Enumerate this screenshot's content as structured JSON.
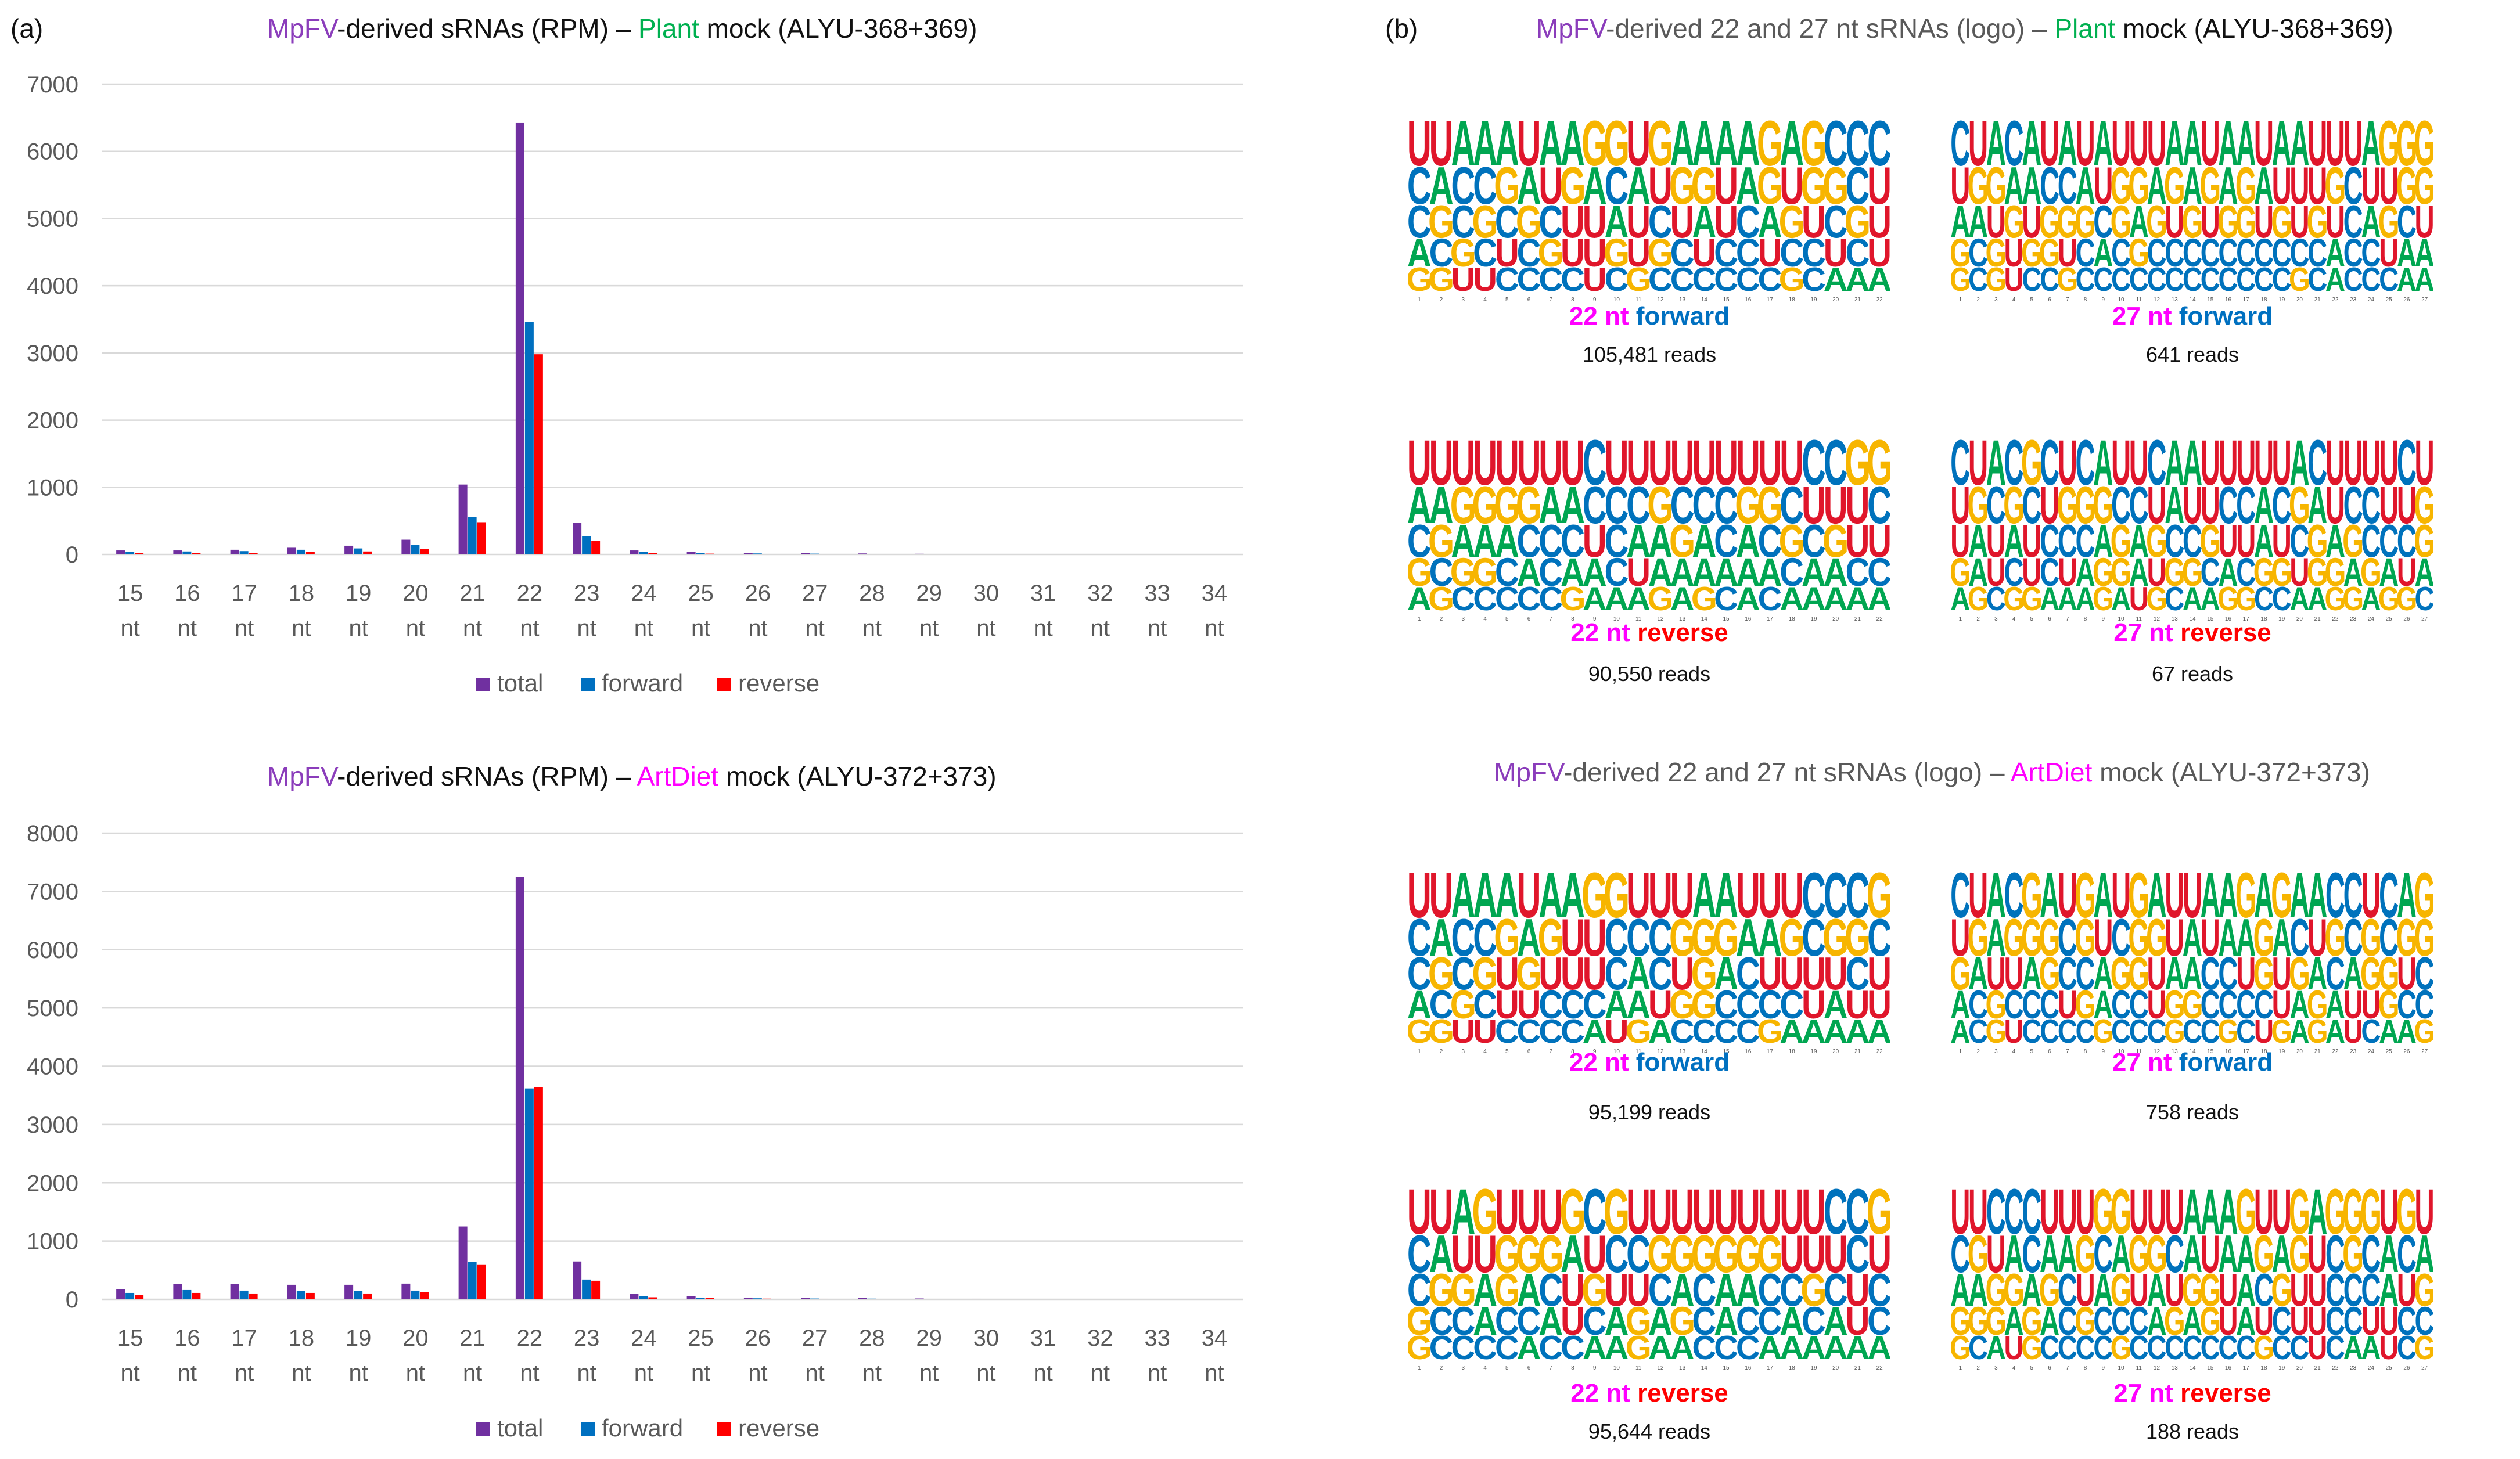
{
  "panel_a_label": "(a)",
  "panel_b_label": "(b)",
  "chart_titles": [
    {
      "part1": "MpFV",
      "part2": "-derived sRNAs (RPM) – ",
      "part3": "Plant",
      "part4": " mock (ALYU-368+369)"
    },
    {
      "part1": "MpFV",
      "part2": "-derived sRNAs (RPM) – ",
      "part3": "ArtDiet",
      "part4": " mock (ALYU-372+373)"
    }
  ],
  "logo_titles": [
    {
      "part1": "MpFV",
      "part2": "-derived 22 and 27 nt sRNAs (logo) – ",
      "part3": "Plant",
      "part4": " mock (ALYU-368+369)"
    },
    {
      "part1": "MpFV",
      "part2": "-derived 22 and 27 nt sRNAs (logo) – ",
      "part3": "ArtDiet",
      "part4": " mock (ALYU-372+373)"
    }
  ],
  "colors": {
    "total": "#7030A0",
    "forward": "#0070C0",
    "reverse": "#FF0000",
    "A": "#00A651",
    "C": "#0072BC",
    "G": "#F7B500",
    "U": "#E0162B",
    "caption_len": "#FF00FF",
    "caption_forward": "#0070C0",
    "caption_reverse": "#FF0000"
  },
  "chart_data": [
    {
      "type": "bar",
      "title": "MpFV-derived sRNAs (RPM) – Plant mock (ALYU-368+369)",
      "categories": [
        "15 nt",
        "16 nt",
        "17 nt",
        "18 nt",
        "19 nt",
        "20 nt",
        "21 nt",
        "22 nt",
        "23 nt",
        "24 nt",
        "25 nt",
        "26 nt",
        "27 nt",
        "28 nt",
        "29 nt",
        "30 nt",
        "31 nt",
        "32 nt",
        "33 nt",
        "34 nt"
      ],
      "yticks": [
        "0",
        "1000",
        "2000",
        "3000",
        "4000",
        "5000",
        "6000",
        "7000"
      ],
      "ylim": [
        0,
        7000
      ],
      "legend": [
        "total",
        "forward",
        "reverse"
      ],
      "legend_position": "bottom",
      "series": [
        {
          "name": "total",
          "values": [
            60,
            60,
            70,
            100,
            130,
            220,
            1040,
            6430,
            470,
            60,
            40,
            25,
            20,
            15,
            10,
            8,
            5,
            4,
            3,
            2
          ]
        },
        {
          "name": "forward",
          "values": [
            40,
            45,
            50,
            70,
            90,
            140,
            560,
            3460,
            270,
            40,
            25,
            15,
            12,
            8,
            6,
            4,
            3,
            2,
            2,
            1
          ]
        },
        {
          "name": "reverse",
          "values": [
            20,
            20,
            25,
            35,
            45,
            85,
            480,
            2980,
            200,
            20,
            12,
            8,
            6,
            5,
            3,
            2,
            1,
            1,
            1,
            1
          ]
        }
      ]
    },
    {
      "type": "bar",
      "title": "MpFV-derived sRNAs (RPM) – ArtDiet mock (ALYU-372+373)",
      "categories": [
        "15 nt",
        "16 nt",
        "17 nt",
        "18 nt",
        "19 nt",
        "20 nt",
        "21 nt",
        "22 nt",
        "23 nt",
        "24 nt",
        "25 nt",
        "26 nt",
        "27 nt",
        "28 nt",
        "29 nt",
        "30 nt",
        "31 nt",
        "32 nt",
        "33 nt",
        "34 nt"
      ],
      "yticks": [
        "0",
        "1000",
        "2000",
        "3000",
        "4000",
        "5000",
        "6000",
        "7000",
        "8000"
      ],
      "ylim": [
        0,
        8000
      ],
      "legend": [
        "total",
        "forward",
        "reverse"
      ],
      "legend_position": "bottom",
      "series": [
        {
          "name": "total",
          "values": [
            170,
            260,
            260,
            250,
            250,
            270,
            1250,
            7250,
            650,
            90,
            50,
            30,
            25,
            20,
            15,
            10,
            8,
            6,
            5,
            4
          ]
        },
        {
          "name": "forward",
          "values": [
            110,
            160,
            150,
            140,
            140,
            150,
            640,
            3620,
            340,
            55,
            30,
            18,
            14,
            12,
            8,
            6,
            5,
            4,
            3,
            2
          ]
        },
        {
          "name": "reverse",
          "values": [
            70,
            110,
            100,
            110,
            100,
            120,
            600,
            3640,
            320,
            35,
            20,
            12,
            10,
            8,
            6,
            4,
            3,
            2,
            2,
            2
          ]
        }
      ]
    }
  ],
  "logos": [
    {
      "len": "22 nt",
      "dir": "forward",
      "reads": "105,481 reads",
      "columns": [
        "UCCAG",
        "UAGCG",
        "ACCGU",
        "ACGCU",
        "AGCUC",
        "UAGCC",
        "AUCGC",
        "AGUUC",
        "GAUUU",
        "GCAGC",
        "UAUUG",
        "GUCGC",
        "AGUCC",
        "AGAUC",
        "AUUCC",
        "AACCC",
        "GGAUC",
        "AUGCG",
        "GGUCC",
        "CGCUA",
        "CCGCA",
        "CUUUA"
      ]
    },
    {
      "len": "27 nt",
      "dir": "forward",
      "reads": "641 reads",
      "columns": [
        "CUAGG",
        "UGACC",
        "AGUGG",
        "CAGUU",
        "AAUGC",
        "UCGGC",
        "ACGUG",
        "UAGCC",
        "AUCAC",
        "UGGCC",
        "UGAGC",
        "UAGCC",
        "AGUCC",
        "AAGCC",
        "UGUCC",
        "AAGCC",
        "AGGCC",
        "UAUCC",
        "AUGCC",
        "AUUCG",
        "UUGCC",
        "UGUAA",
        "UCCCC",
        "AUACC",
        "GUGUC",
        "GGCAA",
        "GGUAA"
      ]
    },
    {
      "len": "22 nt",
      "dir": "reverse",
      "reads": "90,550 reads",
      "columns": [
        "UACGA",
        "UAGCG",
        "UGAGC",
        "UGAGC",
        "UGACC",
        "UGCAC",
        "UACCC",
        "UACAG",
        "CCUAA",
        "UCCCA",
        "UCAUA",
        "UGAAG",
        "UCGAA",
        "UCAAG",
        "UCCAC",
        "UGAAA",
        "UGCAC",
        "UCGCA",
        "CUCAA",
        "CUGAA",
        "GUUCA",
        "GCUCA"
      ]
    },
    {
      "len": "27 nt",
      "dir": "reverse",
      "reads": "67 reads",
      "columns": [
        "CUUGA",
        "UGAAG",
        "ACUUC",
        "CGACG",
        "GCUUG",
        "CUCCA",
        "UGCUA",
        "CGCAA",
        "AGAGG",
        "UCGGA",
        "UCAAU",
        "CUGUG",
        "AACGC",
        "AUCGA",
        "UUGCA",
        "UCUAG",
        "UCUCG",
        "UAAGC",
        "UCUGC",
        "AGCUA",
        "CAGGA",
        "UUAGG",
        "UCGAG",
        "UCCGA",
        "UUCAG",
        "CUCUG",
        "UGGAC"
      ]
    },
    {
      "len": "22 nt",
      "dir": "forward",
      "reads": "95,199 reads",
      "columns": [
        "UCCAG",
        "UAGCG",
        "ACCGU",
        "ACGCU",
        "AGUUC",
        "UAGUC",
        "AGUCC",
        "AUUCC",
        "GUUCA",
        "GCCAU",
        "UCAAG",
        "UCCUA",
        "UGUGC",
        "AGGGC",
        "AGACC",
        "UACCC",
        "UAUCG",
        "UGUCA",
        "CCUUA",
        "CGUAA",
        "CGCUA",
        "GCUUA"
      ]
    },
    {
      "len": "27 nt",
      "dir": "forward",
      "reads": "758 reads",
      "columns": [
        "CUGAA",
        "UGACC",
        "AAUGG",
        "CGUCU",
        "GGACC",
        "AGGCC",
        "UCCUC",
        "GGCGC",
        "AUAAG",
        "UCGCC",
        "GGGCC",
        "AGUUC",
        "UUAGG",
        "UAAGC",
        "AUCCC",
        "AACCG",
        "GAUCC",
        "AGGCU",
        "GAUUG",
        "ACGAA",
        "AUAGG",
        "CGCAA",
        "CCAUU",
        "UGGUC",
        "CCGGA",
        "AGUCA",
        "GGCCG"
      ]
    },
    {
      "len": "22 nt",
      "dir": "reverse",
      "reads": "95,644 reads",
      "columns": [
        "UCCGG",
        "UAGCC",
        "AUGCC",
        "GUAAC",
        "UGGCC",
        "UGACA",
        "UGCAC",
        "GAUUC",
        "CUGCA",
        "GCUAA",
        "UCUGG",
        "UGCAA",
        "UGAGA",
        "UGCCC",
        "UGAAC",
        "UGACC",
        "UGCCA",
        "UUCAA",
        "UUGCA",
        "CUCAA",
        "CCUUA",
        "GUCCA"
      ]
    },
    {
      "len": "27 nt",
      "dir": "reverse",
      "reads": "188 reads",
      "columns": [
        "UCAGG",
        "UGAGC",
        "CUGGA",
        "CAGAU",
        "CCAGG",
        "UAGAC",
        "UACCC",
        "UGUGC",
        "GCACC",
        "GAGCG",
        "UGUCC",
        "UGAAC",
        "UCUGC",
        "AAGAC",
        "AUGGC",
        "AAUUC",
        "GAAAC",
        "UGCUG",
        "UAGCC",
        "GGUUC",
        "AUUUU",
        "GCCCC",
        "GGCCA",
        "GCCUA",
        "UAAUU",
        "GCUCC",
        "UAGCG"
      ]
    }
  ]
}
